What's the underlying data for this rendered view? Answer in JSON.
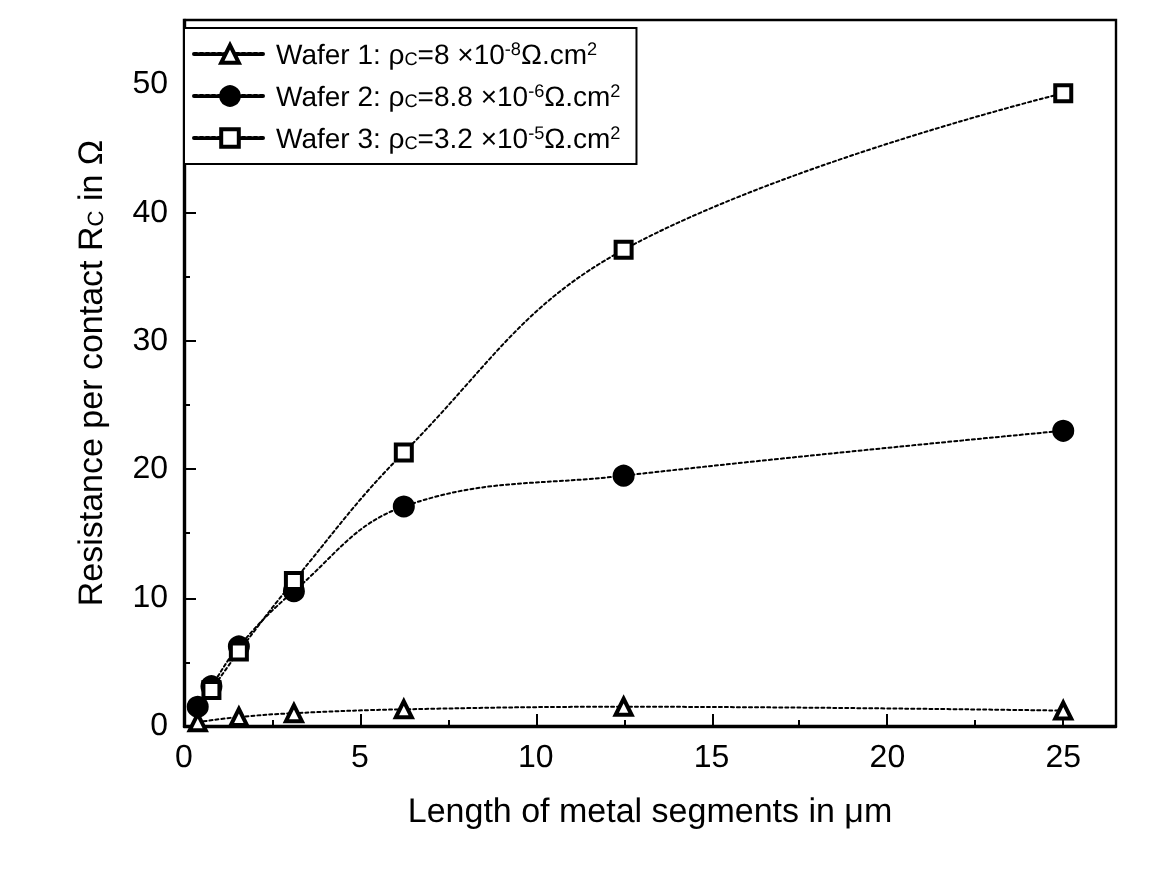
{
  "chart_data": {
    "type": "line",
    "xlabel": "Length of metal segments in μm",
    "ylabel": "Resistance per contact R$_{C}$ in Ω",
    "xlim": [
      0,
      26.5
    ],
    "xticks": [
      0,
      5,
      10,
      15,
      20,
      25
    ],
    "ylim": [
      0,
      55
    ],
    "yticks": [
      0,
      10,
      20,
      30,
      40,
      50
    ],
    "grid": false,
    "legend": "top left",
    "line_style": "dotted",
    "series": [
      {
        "name": "Wafer 1: ρ$_{C}$=8 ×10$^{-8}$Ω.cm$^{2}$",
        "color": "#000000",
        "marker": "triangle",
        "x": [
          0.39,
          1.56,
          3.125,
          6.25,
          12.5,
          25
        ],
        "values": [
          0.3,
          0.7,
          1.0,
          1.3,
          1.5,
          1.2
        ]
      },
      {
        "name": "Wafer 2: ρ$_{C}$=8.8 ×10$^{-6}$Ω.cm$^{2}$",
        "color": "#000000",
        "marker": "circle",
        "x": [
          0.39,
          0.78,
          1.56,
          3.125,
          6.25,
          12.5,
          25
        ],
        "values": [
          1.5,
          3.1,
          6.2,
          10.5,
          17.1,
          19.5,
          23.0
        ]
      },
      {
        "name": "Wafer 3: ρ$_{C}$=3.2 ×10$^{-5}$Ω.cm$^{2}$",
        "color": "#000000",
        "marker": "square",
        "x": [
          0.78,
          1.56,
          3.125,
          6.25,
          12.5,
          25
        ],
        "values": [
          2.8,
          5.8,
          11.3,
          21.3,
          37.1,
          49.3
        ]
      }
    ]
  }
}
